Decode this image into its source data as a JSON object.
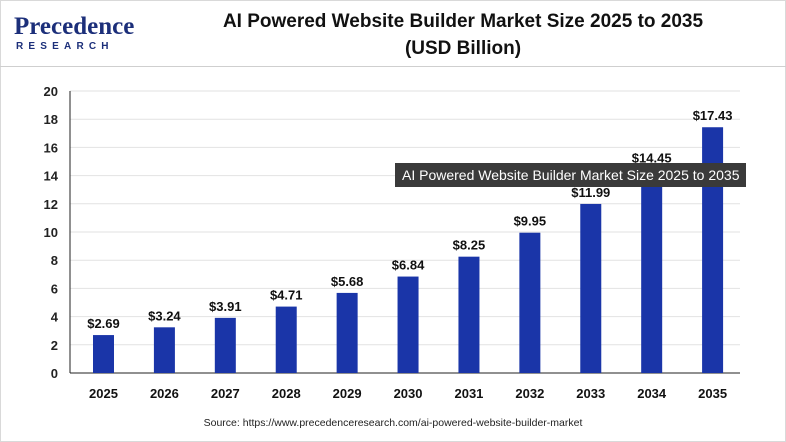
{
  "logo": {
    "word": "Precedence",
    "sub": "RESEARCH"
  },
  "title_line1": "AI Powered Website Builder Market Size 2025 to 2035",
  "title_line2": "(USD Billion)",
  "tooltip": "AI Powered Website Builder Market Size 2025 to 2035",
  "source": "Source: https://www.precedenceresearch.com/ai-powered-website-builder-market",
  "colors": {
    "bar": "#1a35a8",
    "grid": "#e2e2e2",
    "axis": "#222222",
    "brand": "#1c2f7a"
  },
  "chart_data": {
    "type": "bar",
    "title": "AI Powered Website Builder Market Size 2025 to 2035",
    "subtitle": "(USD Billion)",
    "categories": [
      "2025",
      "2026",
      "2027",
      "2028",
      "2029",
      "2030",
      "2031",
      "2032",
      "2033",
      "2034",
      "2035"
    ],
    "values": [
      2.69,
      3.24,
      3.91,
      4.71,
      5.68,
      6.84,
      8.25,
      9.95,
      11.99,
      14.45,
      17.43
    ],
    "value_labels": [
      "$2.69",
      "$3.24",
      "$3.91",
      "$4.71",
      "$5.68",
      "$6.84",
      "$8.25",
      "$9.95",
      "$11.99",
      "$14.45",
      "$17.43"
    ],
    "yticks": [
      0,
      2,
      4,
      6,
      8,
      10,
      12,
      14,
      16,
      18,
      20
    ],
    "ylim": [
      0,
      20
    ],
    "xlabel": "",
    "ylabel": "",
    "grid": true,
    "legend": "none"
  }
}
